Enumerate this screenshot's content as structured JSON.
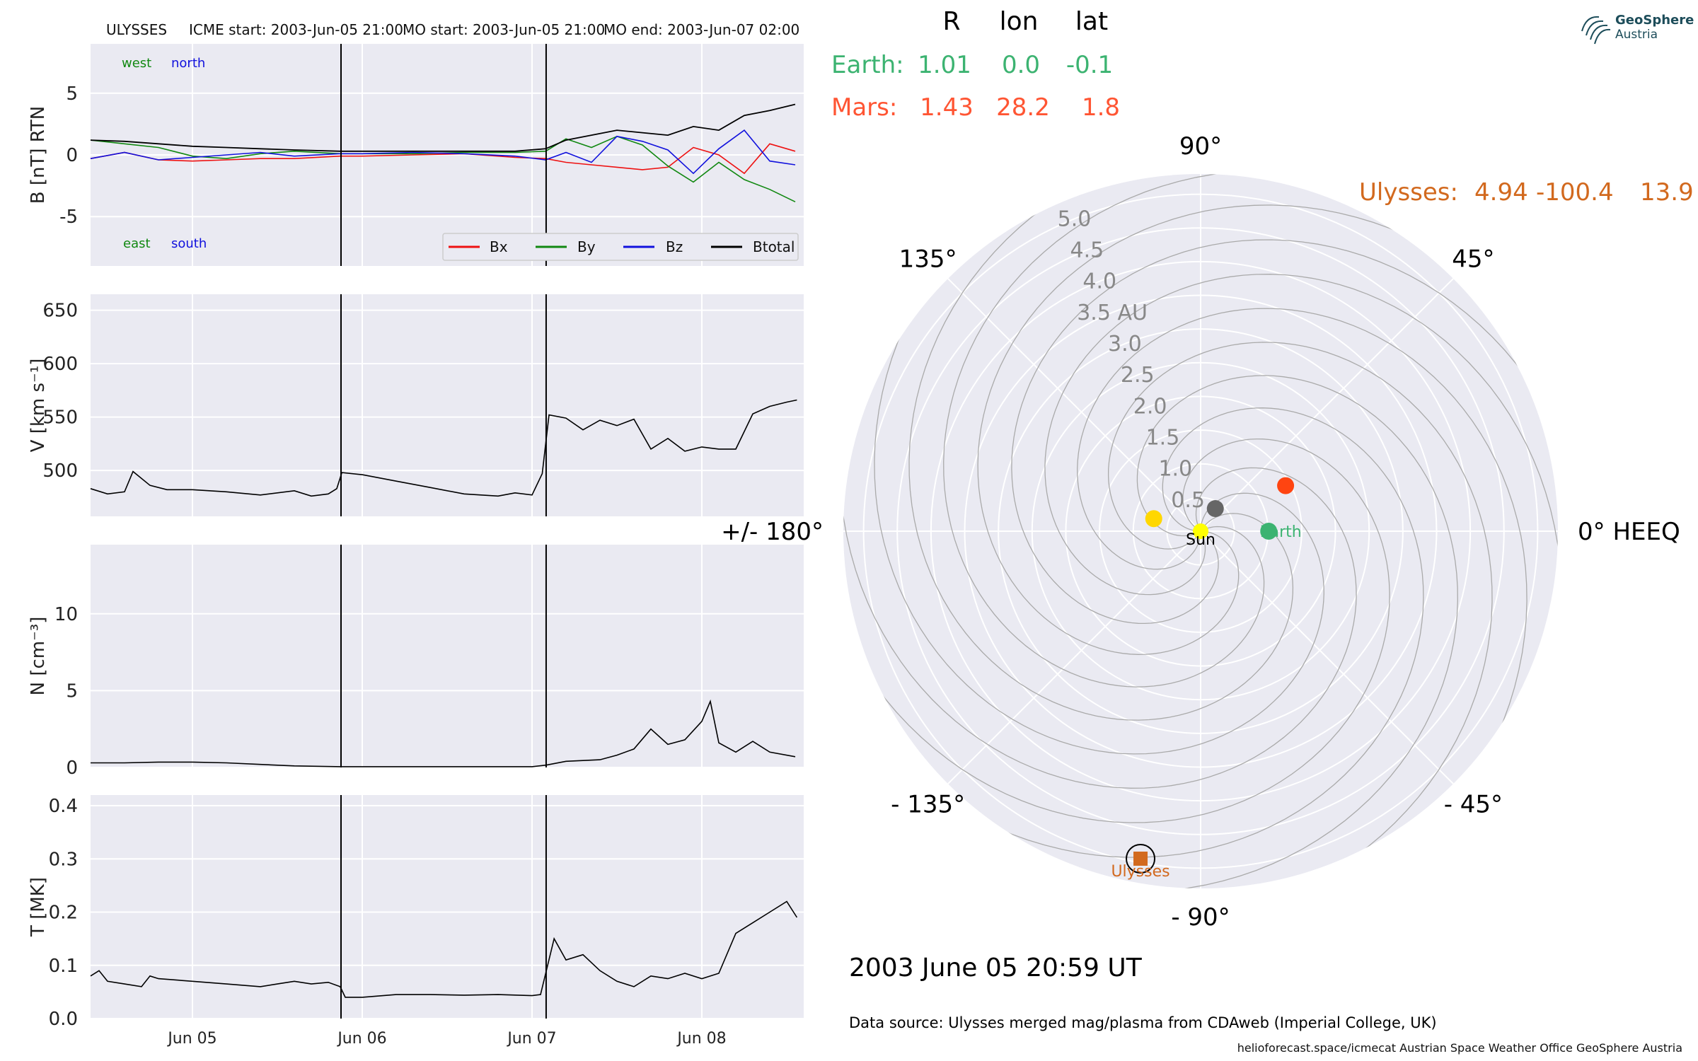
{
  "header": {
    "spacecraft": "ULYSSES",
    "icme_start": "ICME start: 2003-Jun-05 21:00",
    "mo_start": "MO start: 2003-Jun-05 21:00",
    "mo_end": "MO end: 2003-Jun-07 02:00"
  },
  "positions_table": {
    "headers": [
      "R",
      "lon",
      "lat"
    ],
    "rows": [
      {
        "name": "Earth:",
        "R": "1.01",
        "lon": "0.0",
        "lat": "-0.1",
        "color": "#3cb371"
      },
      {
        "name": "Mars:",
        "R": "1.43",
        "lon": "28.2",
        "lat": "1.8",
        "color": "#ff5533"
      }
    ],
    "ulysses": {
      "name": "Ulysses:",
      "R": "4.94",
      "lon": "-100.4",
      "lat": "13.9",
      "color": "#d2691e"
    }
  },
  "logo": {
    "line1": "GeoSphere",
    "line2": "Austria"
  },
  "timestamp": "2003 June 05  20:59 UT",
  "data_source": "Data source: Ulysses merged mag/plasma from CDAweb (Imperial College, UK)",
  "credits": "helioforecast.space/icmecat   Austrian Space Weather Office   GeoSphere Austria",
  "colors": {
    "bx": "#ee1111",
    "by": "#118811",
    "bz": "#1111dd",
    "btotal": "#000000"
  },
  "chart_data": [
    {
      "type": "line",
      "ylabel": "B [nT] RTN",
      "ylim": [
        -9,
        9
      ],
      "yticks": [
        -5,
        0,
        5
      ],
      "xlim_days": [
        4.4,
        8.6
      ],
      "x_tick_labels": [
        "Jun 05",
        "Jun 06",
        "Jun 07",
        "Jun 08"
      ],
      "x_tick_days": [
        5,
        6,
        7,
        8
      ],
      "event_lines_days": [
        5.875,
        7.083
      ],
      "annotations": {
        "west": "west",
        "north": "north",
        "east": "east",
        "south": "south"
      },
      "legend": [
        "Bx",
        "By",
        "Bz",
        "Btotal"
      ],
      "x": [
        4.4,
        4.6,
        4.8,
        5.0,
        5.2,
        5.4,
        5.6,
        5.87,
        6.0,
        6.3,
        6.6,
        6.9,
        7.08,
        7.2,
        7.35,
        7.5,
        7.65,
        7.8,
        7.95,
        8.1,
        8.25,
        8.4,
        8.55
      ],
      "series": [
        {
          "name": "Bx",
          "values": [
            -0.3,
            0.2,
            -0.4,
            -0.5,
            -0.4,
            -0.3,
            -0.3,
            -0.1,
            -0.1,
            0.0,
            0.1,
            -0.2,
            -0.3,
            -0.6,
            -0.8,
            -1.0,
            -1.2,
            -1.0,
            0.6,
            0.0,
            -1.5,
            0.9,
            0.3
          ]
        },
        {
          "name": "By",
          "values": [
            1.2,
            0.9,
            0.6,
            -0.1,
            -0.3,
            0.1,
            0.3,
            0.1,
            0.1,
            0.1,
            0.2,
            0.2,
            0.3,
            1.3,
            0.6,
            1.5,
            0.8,
            -0.9,
            -2.2,
            -0.6,
            -2.0,
            -2.8,
            -3.8
          ]
        },
        {
          "name": "Bz",
          "values": [
            -0.3,
            0.2,
            -0.4,
            -0.2,
            0.0,
            0.2,
            -0.1,
            0.1,
            0.1,
            0.2,
            0.1,
            -0.1,
            -0.4,
            0.2,
            -0.6,
            1.5,
            1.1,
            0.4,
            -1.5,
            0.5,
            2.0,
            -0.5,
            -0.8
          ]
        },
        {
          "name": "Btotal",
          "values": [
            1.2,
            1.1,
            0.9,
            0.7,
            0.6,
            0.5,
            0.4,
            0.3,
            0.3,
            0.3,
            0.3,
            0.3,
            0.5,
            1.2,
            1.6,
            2.0,
            1.8,
            1.6,
            2.3,
            2.0,
            3.2,
            3.6,
            4.1
          ]
        }
      ]
    },
    {
      "type": "line",
      "ylabel": "V [km s⁻¹]",
      "ylim": [
        457,
        665
      ],
      "yticks": [
        500,
        550,
        600,
        650
      ],
      "event_lines_days": [
        5.875,
        7.083
      ],
      "x": [
        4.4,
        4.5,
        4.6,
        4.65,
        4.75,
        4.85,
        5.0,
        5.2,
        5.4,
        5.6,
        5.7,
        5.8,
        5.85,
        5.88,
        6.0,
        6.2,
        6.4,
        6.6,
        6.8,
        6.9,
        7.0,
        7.06,
        7.1,
        7.2,
        7.3,
        7.4,
        7.5,
        7.6,
        7.7,
        7.8,
        7.9,
        8.0,
        8.1,
        8.2,
        8.3,
        8.4,
        8.5,
        8.56
      ],
      "series": [
        {
          "name": "V",
          "values": [
            483,
            478,
            480,
            499,
            486,
            482,
            482,
            480,
            477,
            481,
            476,
            478,
            483,
            498,
            496,
            490,
            484,
            478,
            476,
            479,
            477,
            497,
            552,
            549,
            538,
            547,
            542,
            548,
            520,
            530,
            518,
            522,
            520,
            520,
            553,
            560,
            564,
            566
          ]
        }
      ]
    },
    {
      "type": "line",
      "ylabel": "N [cm⁻³]",
      "ylim": [
        0,
        14.5
      ],
      "yticks": [
        0,
        5,
        10
      ],
      "event_lines_days": [
        5.875,
        7.083
      ],
      "x": [
        4.4,
        4.6,
        4.8,
        5.0,
        5.2,
        5.4,
        5.6,
        5.875,
        6.2,
        6.6,
        7.0,
        7.083,
        7.2,
        7.4,
        7.5,
        7.6,
        7.7,
        7.8,
        7.9,
        8.0,
        8.05,
        8.1,
        8.2,
        8.3,
        8.4,
        8.55
      ],
      "series": [
        {
          "name": "N",
          "values": [
            0.3,
            0.3,
            0.35,
            0.35,
            0.3,
            0.2,
            0.1,
            0.05,
            0.05,
            0.05,
            0.05,
            0.15,
            0.4,
            0.5,
            0.8,
            1.2,
            2.5,
            1.5,
            1.8,
            3.0,
            4.3,
            1.6,
            1.0,
            1.7,
            1.0,
            0.7
          ]
        }
      ]
    },
    {
      "type": "line",
      "ylabel": "T [MK]",
      "ylim": [
        0,
        0.42
      ],
      "yticks": [
        0.0,
        0.1,
        0.2,
        0.3,
        0.4
      ],
      "event_lines_days": [
        5.875,
        7.083
      ],
      "x": [
        4.4,
        4.45,
        4.5,
        4.6,
        4.7,
        4.75,
        4.8,
        5.0,
        5.2,
        5.4,
        5.5,
        5.6,
        5.7,
        5.8,
        5.87,
        5.9,
        6.0,
        6.2,
        6.4,
        6.6,
        6.8,
        7.0,
        7.05,
        7.13,
        7.2,
        7.3,
        7.4,
        7.5,
        7.6,
        7.7,
        7.8,
        7.9,
        8.0,
        8.1,
        8.2,
        8.3,
        8.4,
        8.5,
        8.56
      ],
      "series": [
        {
          "name": "T",
          "values": [
            0.08,
            0.09,
            0.07,
            0.065,
            0.06,
            0.08,
            0.075,
            0.07,
            0.065,
            0.06,
            0.065,
            0.07,
            0.065,
            0.068,
            0.06,
            0.04,
            0.04,
            0.045,
            0.045,
            0.044,
            0.045,
            0.043,
            0.045,
            0.15,
            0.11,
            0.12,
            0.09,
            0.07,
            0.06,
            0.08,
            0.075,
            0.085,
            0.075,
            0.085,
            0.16,
            0.18,
            0.2,
            0.22,
            0.19
          ]
        }
      ]
    },
    {
      "type": "scatter",
      "subtype": "polar",
      "r_max": 5.3,
      "r_tick_labels": [
        "0.5",
        "1.0",
        "1.5",
        "2.0",
        "2.5",
        "3.0",
        "3.5 AU",
        "4.0",
        "4.5",
        "5.0"
      ],
      "r_ticks": [
        0.5,
        1.0,
        1.5,
        2.0,
        2.5,
        3.0,
        3.5,
        4.0,
        4.5,
        5.0
      ],
      "angle_labels": [
        {
          "deg": 0,
          "label": "0° HEEQ"
        },
        {
          "deg": 45,
          "label": "45°"
        },
        {
          "deg": 90,
          "label": "90°"
        },
        {
          "deg": 135,
          "label": "135°"
        },
        {
          "deg": 180,
          "label": "+/- 180°"
        },
        {
          "deg": -135,
          "label": "- 135°"
        },
        {
          "deg": -90,
          "label": "- 90°"
        },
        {
          "deg": -45,
          "label": "- 45°"
        }
      ],
      "bodies": [
        {
          "name": "Sun",
          "label": "Sun",
          "r": 0.0,
          "lon": 0.0,
          "color": "#ffff00",
          "marker": "circle"
        },
        {
          "name": "Earth",
          "label": "Earth",
          "r": 1.01,
          "lon": 0.0,
          "color": "#3cb371",
          "marker": "circle"
        },
        {
          "name": "Mars",
          "r": 1.43,
          "lon": 28.2,
          "color": "#ff4411",
          "marker": "circle"
        },
        {
          "name": "Mercury",
          "r": 0.4,
          "lon": 57.0,
          "color": "#666666",
          "marker": "circle"
        },
        {
          "name": "Venus",
          "r": 0.72,
          "lon": 165.0,
          "color": "#ffd700",
          "marker": "circle"
        },
        {
          "name": "Ulysses",
          "label": "Ulysses",
          "r": 4.94,
          "lon": -100.4,
          "color": "#d2691e",
          "marker": "square"
        }
      ]
    }
  ]
}
